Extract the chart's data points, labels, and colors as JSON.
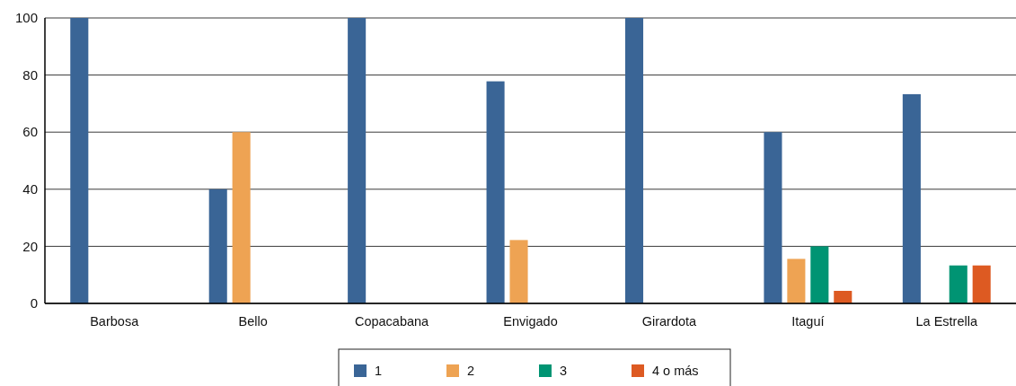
{
  "chart_data": {
    "type": "bar",
    "categories": [
      "Barbosa",
      "Bello",
      "Copacabana",
      "Envigado",
      "Girardota",
      "Itaguí",
      "La Estrella"
    ],
    "series": [
      {
        "name": "1",
        "color": "#3a6596",
        "values": [
          100,
          40,
          100,
          77.8,
          100,
          60,
          73.3
        ]
      },
      {
        "name": "2",
        "color": "#eea353",
        "values": [
          0,
          60,
          0,
          22.2,
          0,
          15.6,
          0
        ]
      },
      {
        "name": "3",
        "color": "#009473",
        "values": [
          0,
          0,
          0,
          0,
          0,
          20,
          13.3
        ]
      },
      {
        "name": "4 o más",
        "color": "#dd5a22",
        "values": [
          0,
          0,
          0,
          0,
          0,
          4.4,
          13.3
        ]
      }
    ],
    "ylim": [
      0,
      100
    ],
    "yticks": [
      0,
      20,
      40,
      60,
      80,
      100
    ],
    "grid": "y",
    "legend": "bottom"
  }
}
